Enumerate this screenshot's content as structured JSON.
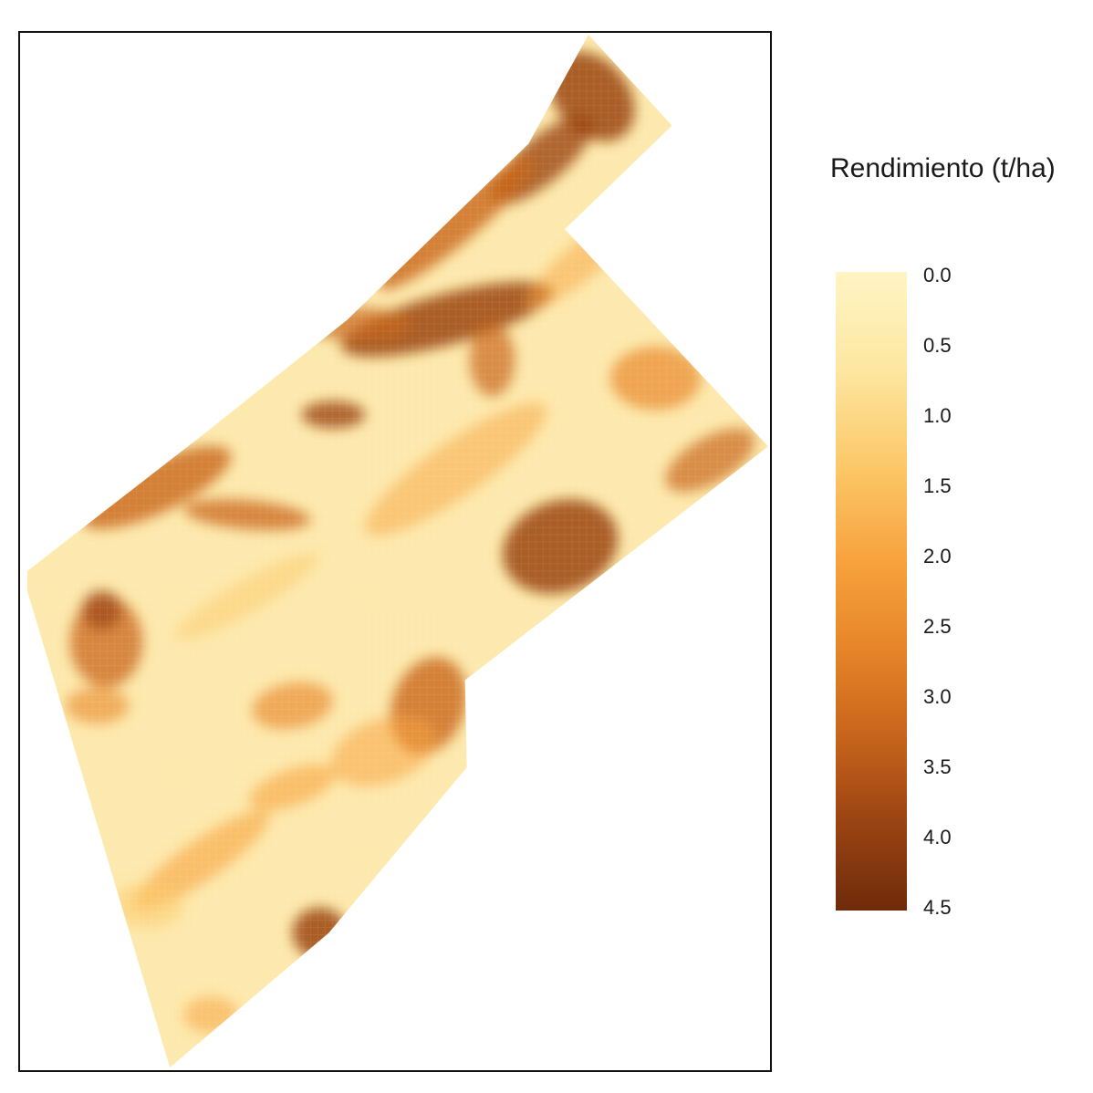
{
  "legend": {
    "title": "Rendimiento (t/ha)",
    "min": 0.0,
    "max": 4.5,
    "ticks": [
      "0.0",
      "0.5",
      "1.0",
      "1.5",
      "2.0",
      "2.5",
      "3.0",
      "3.5",
      "4.0",
      "4.5"
    ],
    "colors": [
      "#fff5c4",
      "#fde7a2",
      "#fcc96a",
      "#f7a33e",
      "#e8872a",
      "#c9661c",
      "#9b4412",
      "#6e2b0b"
    ]
  },
  "map": {
    "description_colors": {
      "background": "#ffffff",
      "border": "#111111"
    }
  }
}
